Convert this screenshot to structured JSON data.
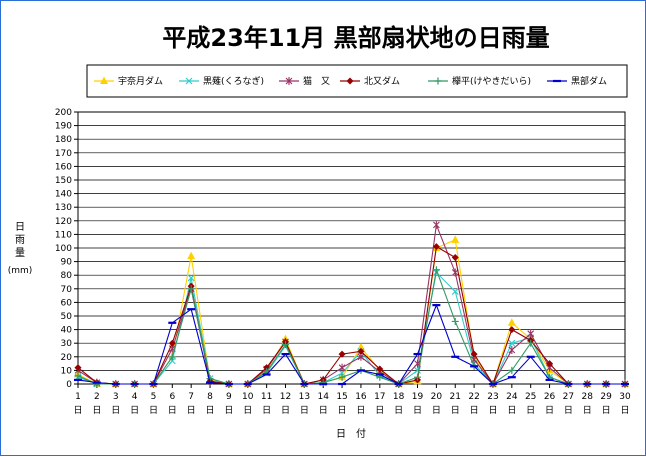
{
  "chart_data": {
    "type": "line",
    "title": "平成23年11月 黒部扇状地の日雨量",
    "ylabel_chars": [
      "日",
      "雨",
      "量"
    ],
    "yunit": "(mm)",
    "xlabel": "日　付",
    "x_suffix": "日",
    "ylim": [
      0,
      200
    ],
    "ytick_step": 10,
    "grid": "horizontal",
    "legend_position": "top",
    "categories": [
      "1",
      "2",
      "3",
      "4",
      "5",
      "6",
      "7",
      "8",
      "9",
      "10",
      "11",
      "12",
      "13",
      "14",
      "15",
      "16",
      "17",
      "18",
      "19",
      "20",
      "21",
      "22",
      "23",
      "24",
      "25",
      "26",
      "27",
      "28",
      "29",
      "30"
    ],
    "series": [
      {
        "name": "宇奈月ダム",
        "color": "#ffd000",
        "marker": "triangle",
        "values": [
          7,
          0,
          0,
          0,
          0,
          20,
          94,
          3,
          0,
          0,
          10,
          33,
          0,
          1,
          5,
          27,
          10,
          0,
          2,
          100,
          106,
          20,
          0,
          45,
          33,
          10,
          0,
          0,
          0,
          0
        ]
      },
      {
        "name": "黒薙(くろなぎ)",
        "color": "#33cccc",
        "marker": "x",
        "values": [
          5,
          0,
          0,
          0,
          0,
          17,
          78,
          4,
          0,
          0,
          8,
          28,
          0,
          1,
          8,
          24,
          6,
          0,
          10,
          82,
          68,
          15,
          0,
          30,
          34,
          5,
          0,
          0,
          0,
          0
        ]
      },
      {
        "name": "猫　又",
        "color": "#993366",
        "marker": "star",
        "values": [
          10,
          1,
          0,
          0,
          0,
          26,
          70,
          2,
          0,
          0,
          11,
          31,
          0,
          3,
          12,
          20,
          9,
          0,
          15,
          117,
          82,
          18,
          0,
          25,
          37,
          12,
          0,
          0,
          0,
          0
        ]
      },
      {
        "name": "北又ダム",
        "color": "#990000",
        "marker": "diamond",
        "values": [
          12,
          1,
          0,
          0,
          0,
          30,
          72,
          2,
          0,
          0,
          12,
          31,
          0,
          3,
          22,
          24,
          11,
          0,
          3,
          101,
          93,
          22,
          0,
          40,
          32,
          15,
          0,
          0,
          0,
          0
        ]
      },
      {
        "name": "欅平(けやきだいら)",
        "color": "#339966",
        "marker": "plus",
        "values": [
          6,
          0,
          0,
          0,
          0,
          20,
          70,
          4,
          0,
          0,
          9,
          29,
          0,
          1,
          5,
          10,
          5,
          0,
          5,
          84,
          46,
          13,
          0,
          10,
          30,
          5,
          0,
          0,
          0,
          0
        ]
      },
      {
        "name": "黒部ダム",
        "color": "#0000cc",
        "marker": "dash",
        "values": [
          3,
          1,
          0,
          0,
          0,
          45,
          55,
          1,
          0,
          0,
          7,
          22,
          0,
          0,
          0,
          10,
          7,
          0,
          22,
          58,
          20,
          13,
          0,
          5,
          20,
          3,
          0,
          0,
          0,
          0
        ]
      }
    ]
  }
}
